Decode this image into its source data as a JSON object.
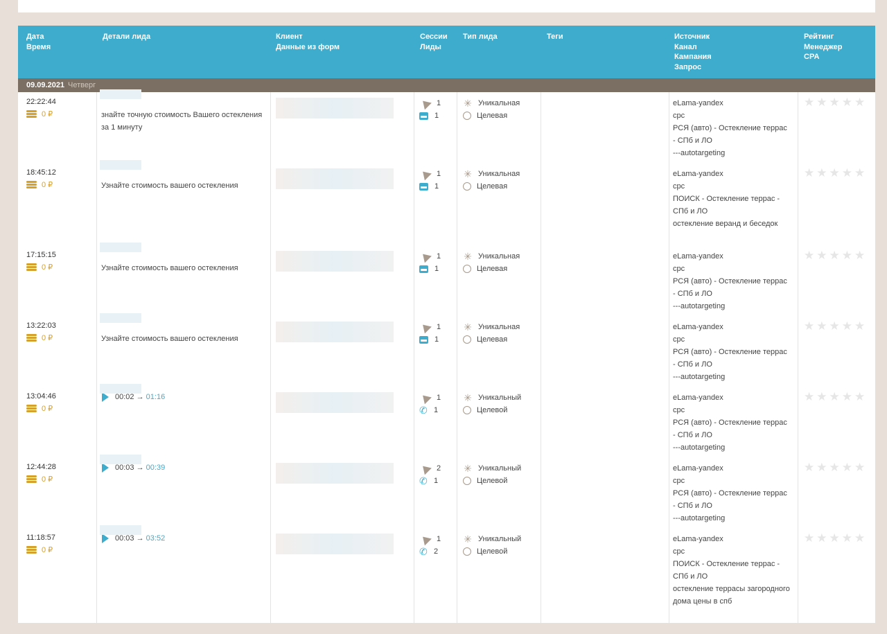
{
  "header": {
    "col_date": [
      "Дата",
      "Время"
    ],
    "col_details": "Детали лида",
    "col_client": [
      "Клиент",
      "Данные из форм"
    ],
    "col_sessions": [
      "Сессии",
      "Лиды"
    ],
    "col_type": "Тип лида",
    "col_tags": "Теги",
    "col_source": [
      "Источник",
      "Канал",
      "Кампания",
      "Запрос"
    ],
    "col_rating": [
      "Рейтинг",
      "Менеджер",
      "CPA"
    ]
  },
  "date_group": {
    "date": "09.09.2021",
    "weekday": "Четверг"
  },
  "rows": [
    {
      "time": "22:22:44",
      "money": "0 ₽",
      "detail": "знайте точную стоимость Вашего остекления за 1 минуту",
      "sessions": "1",
      "leads": "1",
      "lead_icon": "form-icon",
      "type1": "Уникальная",
      "type2": "Целевая",
      "source": [
        "eLama-yandex",
        "cpc",
        "РСЯ (авто) - Остекление террас - СПб и ЛО",
        "---autotargeting"
      ]
    },
    {
      "time": "18:45:12",
      "money": "0 ₽",
      "detail": "Узнайте стоимость вашего остекления",
      "sessions": "1",
      "leads": "1",
      "lead_icon": "form-icon",
      "type1": "Уникальная",
      "type2": "Целевая",
      "source": [
        "eLama-yandex",
        "cpc",
        "ПОИСК - Остекление террас - СПб и ЛО",
        "остекление веранд и беседок"
      ]
    },
    {
      "time": "17:15:15",
      "money": "0 ₽",
      "detail": "Узнайте стоимость вашего остекления",
      "sessions": "1",
      "leads": "1",
      "lead_icon": "form-icon",
      "type1": "Уникальная",
      "type2": "Целевая",
      "source": [
        "eLama-yandex",
        "cpc",
        "РСЯ (авто) - Остекление террас - СПб и ЛО",
        "---autotargeting"
      ]
    },
    {
      "time": "13:22:03",
      "money": "0 ₽",
      "detail": "Узнайте стоимость вашего остекления",
      "sessions": "1",
      "leads": "1",
      "lead_icon": "form-icon",
      "type1": "Уникальная",
      "type2": "Целевая",
      "source": [
        "eLama-yandex",
        "cpc",
        "РСЯ (авто) - Остекление террас - СПб и ЛО",
        "---autotargeting"
      ]
    },
    {
      "time": "13:04:46",
      "money": "0 ₽",
      "audio_wait": "00:02",
      "arrow": "→",
      "audio_dur": "01:16",
      "sessions": "1",
      "leads": "1",
      "lead_icon": "phone-icon",
      "type1": "Уникальный",
      "type2": "Целевой",
      "source": [
        "eLama-yandex",
        "cpc",
        "РСЯ (авто) - Остекление террас - СПб и ЛО",
        "---autotargeting"
      ]
    },
    {
      "time": "12:44:28",
      "money": "0 ₽",
      "audio_wait": "00:03",
      "arrow": "→",
      "audio_dur": "00:39",
      "sessions": "2",
      "leads": "1",
      "lead_icon": "phone-icon",
      "type1": "Уникальный",
      "type2": "Целевой",
      "source": [
        "eLama-yandex",
        "cpc",
        "РСЯ (авто) - Остекление террас - СПб и ЛО",
        "---autotargeting"
      ]
    },
    {
      "time": "11:18:57",
      "money": "0 ₽",
      "audio_wait": "00:03",
      "arrow": "→",
      "audio_dur": "03:52",
      "sessions": "1",
      "leads": "2",
      "lead_icon": "phone-icon",
      "type1": "Уникальный",
      "type2": "Целевой",
      "source": [
        "eLama-yandex",
        "cpc",
        "ПОИСК - Остекление террас - СПб и ЛО",
        "остекление террасы загородного дома цены в спб"
      ]
    }
  ],
  "colors": {
    "header_bg": "#3eadcd",
    "date_row_bg": "#7b6f63",
    "coin": "#d6a12a",
    "accent": "#3eadcd"
  }
}
